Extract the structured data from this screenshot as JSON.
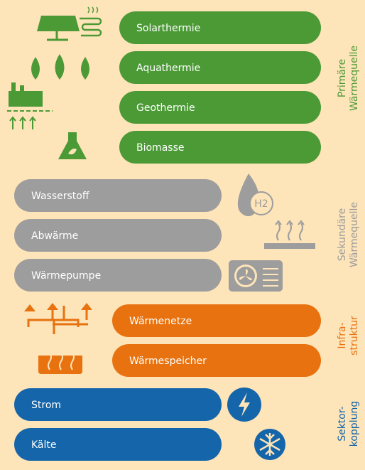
{
  "groups": [
    {
      "label": [
        "Primäre",
        "Wärmequelle"
      ],
      "color": "#4b9a36",
      "items": [
        "Solarthermie",
        "Aquathermie",
        "Geothermie",
        "Biomasse"
      ]
    },
    {
      "label": [
        "Sekundäre",
        "Wärmequelle"
      ],
      "color": "#9d9d9d",
      "items": [
        "Wasserstoff",
        "Abwärme",
        "Wärmepumpe"
      ]
    },
    {
      "label": [
        "Infra-",
        "struktur"
      ],
      "color": "#e8720f",
      "items": [
        "Wärmenetze",
        "Wärmespeicher"
      ]
    },
    {
      "label": [
        "Sektor-",
        "kopplung"
      ],
      "color": "#1465a9",
      "items": [
        "Strom",
        "Kälte"
      ]
    }
  ],
  "icon_text": "H2"
}
